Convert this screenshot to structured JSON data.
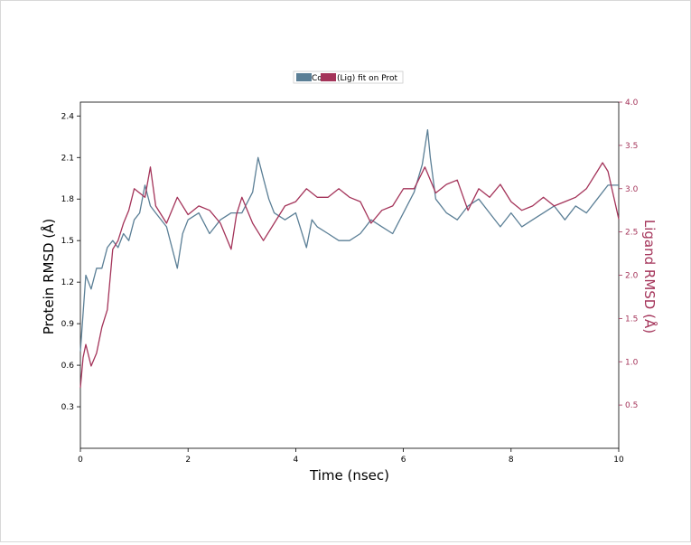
{
  "chart_data": {
    "type": "line",
    "title": "",
    "xlabel": "Time (nsec)",
    "ylabel": "Protein RMSD (Å)",
    "y2label": "Ligand RMSD (Å)",
    "xlim": [
      0,
      10
    ],
    "ylim": [
      0,
      2.5
    ],
    "y2lim": [
      0,
      4.0
    ],
    "x_ticks": [
      "0",
      "2",
      "4",
      "6",
      "8",
      "10"
    ],
    "y_ticks": [
      "0.3",
      "0.6",
      "0.9",
      "1.2",
      "1.5",
      "1.8",
      "2.1",
      "2.4"
    ],
    "y2_ticks": [
      "0.5",
      "1.0",
      "1.5",
      "2.0",
      "2.5",
      "3.0",
      "3.5",
      "4.0"
    ],
    "grid": false,
    "legend_position": "top-center",
    "colors": {
      "protein": "#5b7f96",
      "ligand": "#a4345a"
    },
    "series": [
      {
        "name": "Cα",
        "axis": "left",
        "x": [
          0,
          0.1,
          0.2,
          0.3,
          0.4,
          0.5,
          0.6,
          0.7,
          0.8,
          0.9,
          1.0,
          1.1,
          1.2,
          1.3,
          1.4,
          1.6,
          1.8,
          1.9,
          2.0,
          2.2,
          2.4,
          2.6,
          2.8,
          3.0,
          3.2,
          3.3,
          3.4,
          3.5,
          3.6,
          3.8,
          4.0,
          4.2,
          4.3,
          4.4,
          4.6,
          4.8,
          5.0,
          5.2,
          5.4,
          5.6,
          5.8,
          6.0,
          6.2,
          6.35,
          6.45,
          6.5,
          6.6,
          6.8,
          7.0,
          7.2,
          7.4,
          7.6,
          7.8,
          8.0,
          8.2,
          8.4,
          8.6,
          8.8,
          9.0,
          9.2,
          9.4,
          9.6,
          9.8,
          10.0
        ],
        "y": [
          0.7,
          1.25,
          1.15,
          1.3,
          1.3,
          1.45,
          1.5,
          1.45,
          1.55,
          1.5,
          1.65,
          1.7,
          1.9,
          1.75,
          1.7,
          1.6,
          1.3,
          1.55,
          1.65,
          1.7,
          1.55,
          1.65,
          1.7,
          1.7,
          1.85,
          2.1,
          1.95,
          1.8,
          1.7,
          1.65,
          1.7,
          1.45,
          1.65,
          1.6,
          1.55,
          1.5,
          1.5,
          1.55,
          1.65,
          1.6,
          1.55,
          1.7,
          1.85,
          2.05,
          2.3,
          2.1,
          1.8,
          1.7,
          1.65,
          1.75,
          1.8,
          1.7,
          1.6,
          1.7,
          1.6,
          1.65,
          1.7,
          1.75,
          1.65,
          1.75,
          1.7,
          1.8,
          1.9,
          1.9
        ]
      },
      {
        "name": "(Lig) fit on Prot",
        "axis": "right",
        "x": [
          0,
          0.05,
          0.1,
          0.2,
          0.3,
          0.4,
          0.5,
          0.6,
          0.7,
          0.8,
          0.9,
          1.0,
          1.2,
          1.3,
          1.4,
          1.6,
          1.8,
          2.0,
          2.2,
          2.4,
          2.6,
          2.8,
          2.9,
          3.0,
          3.2,
          3.4,
          3.6,
          3.8,
          4.0,
          4.2,
          4.4,
          4.6,
          4.8,
          5.0,
          5.2,
          5.4,
          5.6,
          5.8,
          6.0,
          6.2,
          6.4,
          6.6,
          6.8,
          7.0,
          7.2,
          7.4,
          7.6,
          7.8,
          8.0,
          8.2,
          8.4,
          8.6,
          8.8,
          9.0,
          9.2,
          9.4,
          9.6,
          9.7,
          9.8,
          10.0
        ],
        "y": [
          0.7,
          1.05,
          1.2,
          0.95,
          1.1,
          1.4,
          1.6,
          2.3,
          2.4,
          2.6,
          2.75,
          3.0,
          2.9,
          3.25,
          2.8,
          2.6,
          2.9,
          2.7,
          2.8,
          2.75,
          2.6,
          2.3,
          2.7,
          2.9,
          2.6,
          2.4,
          2.6,
          2.8,
          2.85,
          3.0,
          2.9,
          2.9,
          3.0,
          2.9,
          2.85,
          2.6,
          2.75,
          2.8,
          3.0,
          3.0,
          3.25,
          2.95,
          3.05,
          3.1,
          2.75,
          3.0,
          2.9,
          3.05,
          2.85,
          2.75,
          2.8,
          2.9,
          2.8,
          2.85,
          2.9,
          3.0,
          3.2,
          3.3,
          3.2,
          2.65
        ]
      }
    ]
  }
}
